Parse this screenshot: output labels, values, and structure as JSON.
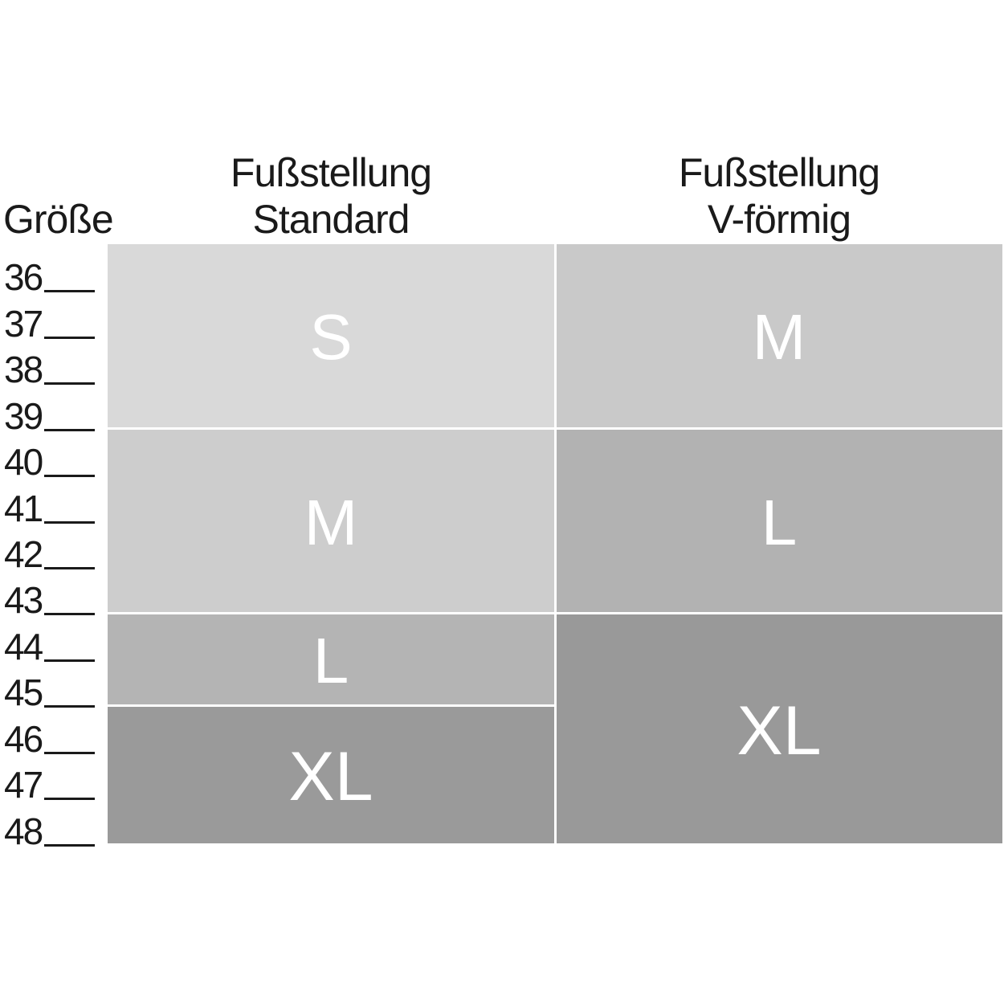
{
  "axis": {
    "title": "Größe",
    "sizes": [
      "36",
      "37",
      "38",
      "39",
      "40",
      "41",
      "42",
      "43",
      "44",
      "45",
      "46",
      "47",
      "48"
    ]
  },
  "headers": {
    "col1": [
      "Fußstellung",
      "Standard"
    ],
    "col2": [
      "Fußstellung",
      "V-förmig"
    ]
  },
  "colors": {
    "text": "#1a1a1a",
    "cell_label_text": "#ffffff",
    "background": "#ffffff",
    "gray_s": "#d9d9d9",
    "gray_m_left": "#cdcdcd",
    "gray_m_right": "#c9c9c9",
    "gray_l_left": "#b4b4b4",
    "gray_l_right": "#b2b2b2",
    "gray_xl": "#999999"
  },
  "grid": {
    "columns": [
      {
        "name": "standard",
        "header": "Fußstellung Standard",
        "segments": [
          {
            "label": "S",
            "from": 36,
            "to": 39,
            "color": "#d9d9d9"
          },
          {
            "label": "M",
            "from": 40,
            "to": 43,
            "color": "#cdcdcd"
          },
          {
            "label": "L",
            "from": 44,
            "to": 45,
            "color": "#b4b4b4"
          },
          {
            "label": "XL",
            "from": 46,
            "to": 48,
            "color": "#9a9a9a"
          }
        ]
      },
      {
        "name": "v-foermig",
        "header": "Fußstellung V-förmig",
        "segments": [
          {
            "label": "M",
            "from": 36,
            "to": 39,
            "color": "#c9c9c9"
          },
          {
            "label": "L",
            "from": 40,
            "to": 43,
            "color": "#b2b2b2"
          },
          {
            "label": "XL",
            "from": 44,
            "to": 48,
            "color": "#999999"
          }
        ]
      }
    ]
  },
  "chart_data": {
    "type": "table",
    "title": "",
    "row_axis_label": "Größe",
    "rows": [
      36,
      37,
      38,
      39,
      40,
      41,
      42,
      43,
      44,
      45,
      46,
      47,
      48
    ],
    "columns": [
      "Fußstellung Standard",
      "Fußstellung V-förmig"
    ],
    "mapping": [
      {
        "column": "Fußstellung Standard",
        "assignments": [
          {
            "size_range": "36-39",
            "value": "S"
          },
          {
            "size_range": "40-43",
            "value": "M"
          },
          {
            "size_range": "44-45",
            "value": "L"
          },
          {
            "size_range": "46-48",
            "value": "XL"
          }
        ]
      },
      {
        "column": "Fußstellung V-förmig",
        "assignments": [
          {
            "size_range": "36-39",
            "value": "M"
          },
          {
            "size_range": "40-43",
            "value": "L"
          },
          {
            "size_range": "44-48",
            "value": "XL"
          }
        ]
      }
    ],
    "layout_hints": {
      "row_axis_side": "left",
      "tick_marks": "horizontal underscore after each size number",
      "grid": "off",
      "legend": "none"
    }
  }
}
